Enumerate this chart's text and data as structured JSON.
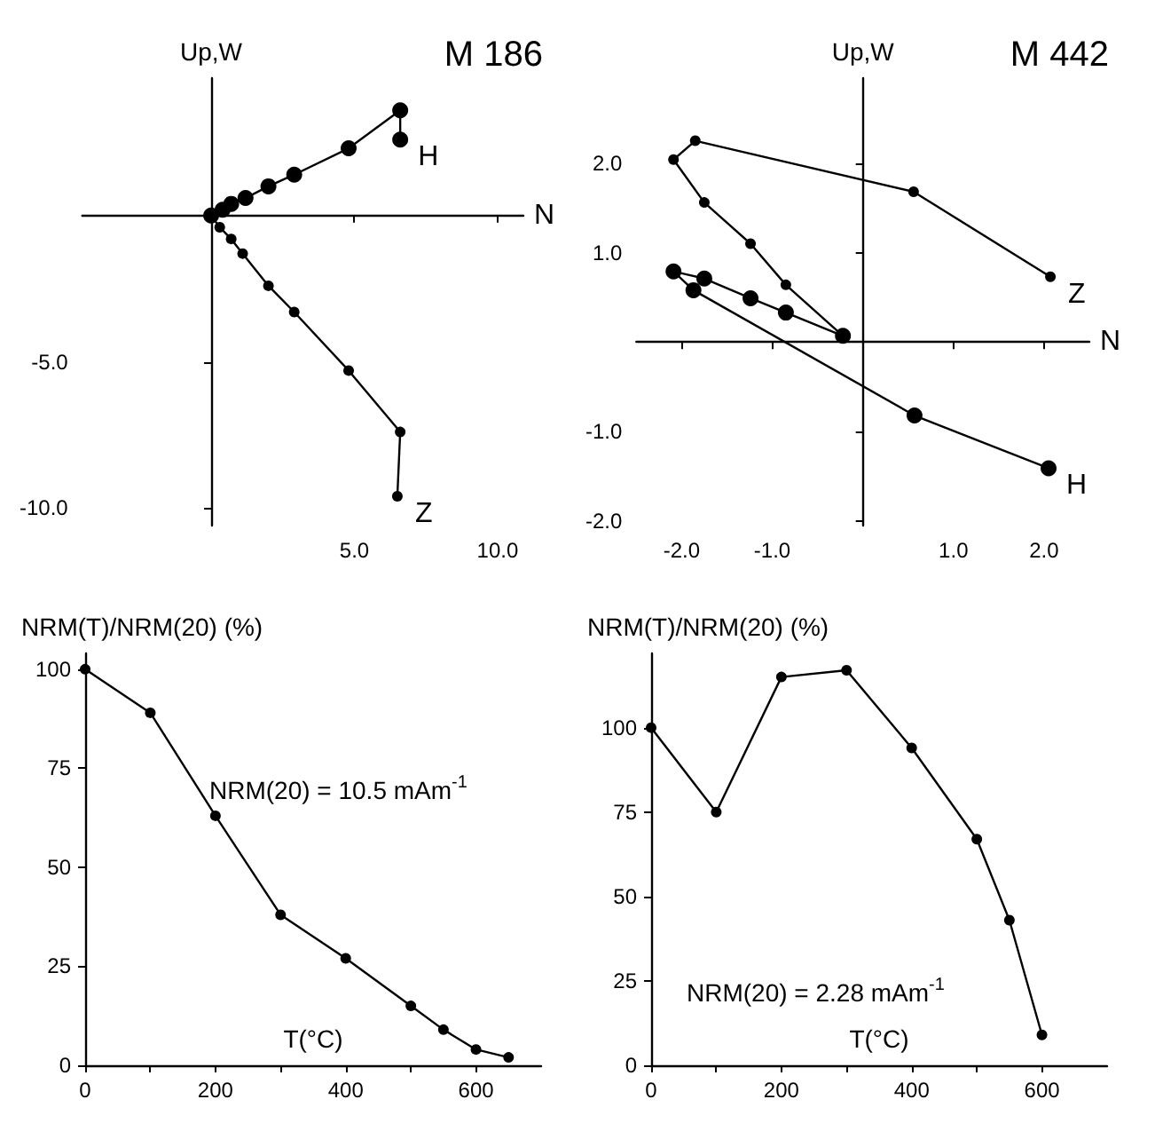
{
  "chart_data": [
    {
      "type": "line",
      "title": "M 186",
      "xlabel": "N",
      "ylabel": "Up,W",
      "xlim": [
        -4.5,
        10.9
      ],
      "ylim": [
        -10.6,
        4.7
      ],
      "xticks": [
        {
          "value": 5,
          "label": "5.0"
        },
        {
          "value": 10,
          "label": "10.0"
        }
      ],
      "yticks": [
        {
          "value": -5,
          "label": "-5.0"
        },
        {
          "value": -10,
          "label": "-10.0"
        }
      ],
      "marker": "circle",
      "line_style": "solid",
      "legend": false,
      "grid": false,
      "series": [
        {
          "name": "H",
          "color": "#000000",
          "x": [
            0,
            0.4,
            0.7,
            1.2,
            2.0,
            2.9,
            4.8,
            6.6,
            6.6
          ],
          "values": [
            0,
            0.2,
            0.4,
            0.6,
            1.0,
            1.4,
            2.3,
            3.6,
            2.6
          ]
        },
        {
          "name": "Z",
          "color": "#000000",
          "x": [
            0,
            0.3,
            0.7,
            1.1,
            2.0,
            2.9,
            4.8,
            6.6,
            6.5
          ],
          "values": [
            0,
            -0.4,
            -0.8,
            -1.3,
            -2.4,
            -3.3,
            -5.3,
            -7.4,
            -9.6
          ]
        }
      ]
    },
    {
      "type": "line",
      "title": "M 442",
      "xlabel": "N",
      "ylabel": "Up,W",
      "xlim": [
        -2.5,
        2.5
      ],
      "ylim": [
        -2.05,
        2.95
      ],
      "xticks": [
        {
          "value": -2,
          "label": "-2.0"
        },
        {
          "value": -1,
          "label": "-1.0"
        },
        {
          "value": 1,
          "label": "1.0"
        },
        {
          "value": 2,
          "label": "2.0"
        }
      ],
      "yticks": [
        {
          "value": -2,
          "label": "-2.0"
        },
        {
          "value": -1,
          "label": "-1.0"
        },
        {
          "value": 1,
          "label": "1.0"
        },
        {
          "value": 2,
          "label": "2.0"
        }
      ],
      "marker": "circle",
      "line_style": "solid",
      "legend": false,
      "grid": false,
      "series": [
        {
          "name": "H",
          "color": "#000000",
          "x": [
            -0.22,
            -0.85,
            -1.24,
            -1.75,
            -2.09,
            -1.87,
            0.57,
            2.05
          ],
          "values": [
            0.07,
            0.33,
            0.49,
            0.71,
            0.79,
            0.58,
            -0.82,
            -1.41
          ]
        },
        {
          "name": "Z",
          "color": "#000000",
          "x": [
            -0.22,
            -0.85,
            -1.24,
            -1.75,
            -2.09,
            -1.85,
            0.56,
            2.07
          ],
          "values": [
            0.07,
            0.64,
            1.1,
            1.56,
            2.04,
            2.25,
            1.68,
            0.73
          ]
        }
      ]
    },
    {
      "type": "line",
      "xlabel": "T(°C)",
      "ylabel": "NRM(T)/NRM(20) (%)",
      "annotations": [
        "NRM(20) = 10.5 mAm$^{-1}$"
      ],
      "xlim": [
        0,
        700
      ],
      "ylim": [
        0,
        104
      ],
      "xticks": [
        0,
        {
          "value": 100,
          "label": null
        },
        200,
        {
          "value": 300,
          "label": null
        },
        400,
        {
          "value": 500,
          "label": null
        },
        600
      ],
      "yticks": [
        0,
        25,
        50,
        75,
        100
      ],
      "marker": "circle",
      "line_style": "solid",
      "legend": false,
      "grid": false,
      "x": [
        0,
        100,
        200,
        300,
        400,
        500,
        550,
        600,
        650
      ],
      "series": [
        {
          "color": "#000000",
          "values": [
            100,
            89,
            63,
            38,
            27,
            15,
            9,
            4,
            2
          ]
        }
      ]
    },
    {
      "type": "line",
      "xlabel": "T(°C)",
      "ylabel": "NRM(T)/NRM(20) (%)",
      "annotations": [
        "NRM(20) = 2.28 mAm$^{-1}$"
      ],
      "xlim": [
        0,
        700
      ],
      "ylim": [
        0,
        122
      ],
      "xticks": [
        0,
        {
          "value": 100,
          "label": null
        },
        200,
        {
          "value": 300,
          "label": null
        },
        400,
        {
          "value": 500,
          "label": null
        },
        600
      ],
      "yticks": [
        0,
        25,
        50,
        75,
        100
      ],
      "marker": "circle",
      "line_style": "solid",
      "legend": false,
      "grid": false,
      "x": [
        0,
        100,
        200,
        300,
        400,
        500,
        550,
        600
      ],
      "series": [
        {
          "color": "#000000",
          "values": [
            100,
            75,
            115,
            117,
            94,
            67,
            43,
            9
          ]
        }
      ]
    }
  ]
}
